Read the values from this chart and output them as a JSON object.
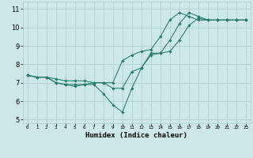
{
  "xlabel": "Humidex (Indice chaleur)",
  "bg_color": "#cce8e8",
  "grid_color": "#aacccc",
  "line_color": "#267a6a",
  "xlim": [
    -0.5,
    23.5
  ],
  "ylim": [
    4.8,
    11.4
  ],
  "xtick_labels": [
    "0",
    "1",
    "2",
    "3",
    "4",
    "5",
    "6",
    "7",
    "8",
    "9",
    "10",
    "11",
    "12",
    "13",
    "14",
    "15",
    "16",
    "17",
    "18",
    "19",
    "20",
    "21",
    "22",
    "23"
  ],
  "yticks": [
    5,
    6,
    7,
    8,
    9,
    10,
    11
  ],
  "line1_x": [
    0,
    1,
    2,
    3,
    4,
    5,
    6,
    7,
    8,
    9,
    10,
    11,
    12,
    13,
    14,
    15,
    16,
    17,
    18,
    19,
    20,
    21,
    22,
    23
  ],
  "line1_y": [
    7.4,
    7.3,
    7.3,
    7.2,
    7.1,
    7.1,
    7.1,
    7.0,
    7.0,
    6.7,
    6.7,
    7.6,
    7.8,
    8.6,
    8.6,
    8.7,
    9.3,
    10.1,
    10.5,
    10.4,
    10.4,
    10.4,
    10.4,
    10.4
  ],
  "line2_x": [
    0,
    1,
    2,
    3,
    4,
    5,
    6,
    7,
    8,
    9,
    10,
    11,
    12,
    13,
    14,
    15,
    16,
    17,
    18,
    19,
    20,
    21,
    22,
    23
  ],
  "line2_y": [
    7.4,
    7.3,
    7.3,
    7.0,
    6.9,
    6.8,
    6.9,
    6.9,
    6.4,
    5.8,
    5.4,
    6.7,
    7.8,
    8.5,
    8.6,
    9.3,
    10.2,
    10.8,
    10.6,
    10.4,
    10.4,
    10.4,
    10.4,
    10.4
  ],
  "line3_x": [
    0,
    1,
    2,
    3,
    4,
    5,
    6,
    7,
    8,
    9,
    10,
    11,
    12,
    13,
    14,
    15,
    16,
    17,
    18,
    19,
    20,
    21,
    22,
    23
  ],
  "line3_y": [
    7.4,
    7.3,
    7.3,
    7.0,
    6.9,
    6.9,
    6.9,
    7.0,
    7.0,
    7.0,
    8.2,
    8.5,
    8.7,
    8.8,
    9.5,
    10.4,
    10.8,
    10.6,
    10.4,
    10.4,
    10.4,
    10.4,
    10.4,
    10.4
  ]
}
